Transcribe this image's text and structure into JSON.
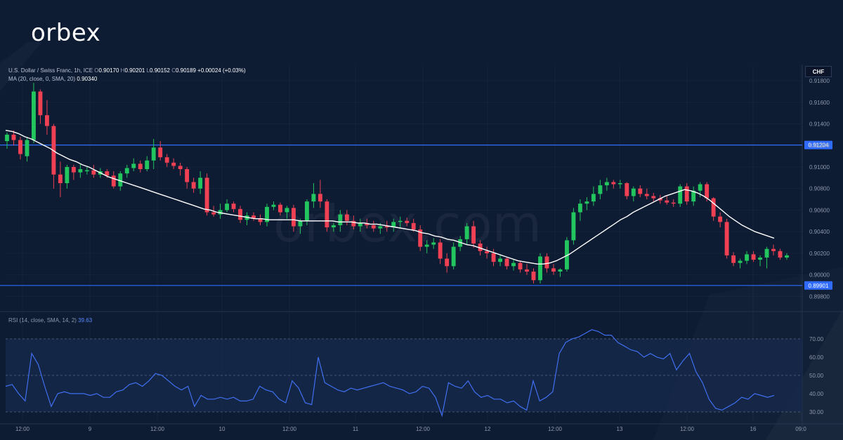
{
  "brand": {
    "logo_text": "orbex",
    "watermark": "orbex.com"
  },
  "header": {
    "symbol_title": "U.S. Dollar / Swiss Franc, 1h, ICE",
    "open_key": "O",
    "open": "0.90170",
    "high_key": "H",
    "high": "0.90201",
    "low_key": "L",
    "low": "0.90152",
    "close_key": "C",
    "close": "0.90189",
    "change": "+0.00024 (+0.03%)",
    "ma_label": "MA (20, close, 0, SMA, 20)",
    "ma_value": "0.90340"
  },
  "currency_button": "CHF",
  "colors": {
    "background": "#0d1b33",
    "up": "#22c55e",
    "down": "#ef4153",
    "ma_line": "#ffffff",
    "level_line": "#2f6bff",
    "rsi_line": "#3f6ff0",
    "rsi_band": "#16284a"
  },
  "rsi_panel": {
    "label": "RSI (14, close, SMA, 14, 2)",
    "value": "39.63",
    "levels": [
      "70.00",
      "60.00",
      "50.00",
      "40.00",
      "30.00"
    ]
  },
  "chart_data": {
    "type": "candlestick",
    "symbol": "U.S. Dollar / Swiss Franc",
    "interval": "1h",
    "y_unit": "CHF",
    "ylim": [
      0.8975,
      0.9195
    ],
    "y_ticks": [
      "0.91800",
      "0.91600",
      "0.91400",
      "0.91200",
      "0.91000",
      "0.90800",
      "0.90600",
      "0.90400",
      "0.90200",
      "0.90000",
      "0.89800"
    ],
    "x_tick_labels": [
      "12:00",
      "9",
      "12:00",
      "10",
      "12:00",
      "11",
      "12:00",
      "12",
      "12:00",
      "13",
      "12:00",
      "16",
      "09:0"
    ],
    "horizontal_levels": [
      {
        "label": "0.91204",
        "value": 0.91204
      },
      {
        "label": "0.89901",
        "value": 0.89901
      }
    ],
    "candles": [
      [
        0.9124,
        0.9132,
        0.9117,
        0.913
      ],
      [
        0.913,
        0.9134,
        0.912,
        0.9125
      ],
      [
        0.9125,
        0.9128,
        0.9107,
        0.9112
      ],
      [
        0.911,
        0.9128,
        0.9105,
        0.9125
      ],
      [
        0.9125,
        0.9178,
        0.9122,
        0.917
      ],
      [
        0.917,
        0.9172,
        0.914,
        0.9148
      ],
      [
        0.9148,
        0.9162,
        0.913,
        0.9138
      ],
      [
        0.9138,
        0.914,
        0.908,
        0.9093
      ],
      [
        0.9093,
        0.9105,
        0.9072,
        0.9085
      ],
      [
        0.9085,
        0.9102,
        0.908,
        0.91
      ],
      [
        0.91,
        0.9102,
        0.9088,
        0.9095
      ],
      [
        0.9095,
        0.9103,
        0.909,
        0.9098
      ],
      [
        0.9096,
        0.91,
        0.9093,
        0.9097
      ],
      [
        0.9097,
        0.9102,
        0.909,
        0.9093
      ],
      [
        0.9093,
        0.9099,
        0.909,
        0.9096
      ],
      [
        0.9096,
        0.9098,
        0.909,
        0.9092
      ],
      [
        0.9092,
        0.9096,
        0.908,
        0.9082
      ],
      [
        0.9082,
        0.9096,
        0.9078,
        0.9094
      ],
      [
        0.9094,
        0.9102,
        0.909,
        0.9099
      ],
      [
        0.9099,
        0.9108,
        0.9096,
        0.9103
      ],
      [
        0.9103,
        0.9106,
        0.9095,
        0.9098
      ],
      [
        0.9098,
        0.911,
        0.9096,
        0.9106
      ],
      [
        0.9106,
        0.9126,
        0.9098,
        0.9118
      ],
      [
        0.9118,
        0.9124,
        0.9106,
        0.9109
      ],
      [
        0.9109,
        0.9112,
        0.91,
        0.9104
      ],
      [
        0.9104,
        0.9108,
        0.9098,
        0.9101
      ],
      [
        0.9101,
        0.9104,
        0.9092,
        0.9098
      ],
      [
        0.9098,
        0.91,
        0.908,
        0.9086
      ],
      [
        0.9086,
        0.909,
        0.9076,
        0.908
      ],
      [
        0.908,
        0.9096,
        0.9075,
        0.909
      ],
      [
        0.909,
        0.9094,
        0.9055,
        0.9058
      ],
      [
        0.9058,
        0.9064,
        0.9054,
        0.9056
      ],
      [
        0.9056,
        0.9066,
        0.9052,
        0.906
      ],
      [
        0.906,
        0.907,
        0.9058,
        0.9066
      ],
      [
        0.9066,
        0.9068,
        0.9058,
        0.9061
      ],
      [
        0.9061,
        0.9064,
        0.9048,
        0.9051
      ],
      [
        0.9051,
        0.9058,
        0.9046,
        0.9055
      ],
      [
        0.9055,
        0.9058,
        0.905,
        0.9052
      ],
      [
        0.9052,
        0.9056,
        0.9046,
        0.9049
      ],
      [
        0.9049,
        0.9066,
        0.9045,
        0.9063
      ],
      [
        0.9063,
        0.9068,
        0.906,
        0.9065
      ],
      [
        0.9065,
        0.9067,
        0.9055,
        0.9058
      ],
      [
        0.9058,
        0.9064,
        0.9052,
        0.9062
      ],
      [
        0.9062,
        0.9065,
        0.904,
        0.9045
      ],
      [
        0.9045,
        0.9052,
        0.9038,
        0.905
      ],
      [
        0.905,
        0.907,
        0.9046,
        0.9068
      ],
      [
        0.9068,
        0.9085,
        0.9062,
        0.9075
      ],
      [
        0.9075,
        0.9088,
        0.9062,
        0.9068
      ],
      [
        0.9068,
        0.907,
        0.904,
        0.9044
      ],
      [
        0.9044,
        0.9048,
        0.904,
        0.9046
      ],
      [
        0.9046,
        0.906,
        0.904,
        0.9056
      ],
      [
        0.9056,
        0.906,
        0.9046,
        0.905
      ],
      [
        0.905,
        0.9055,
        0.9042,
        0.9045
      ],
      [
        0.9045,
        0.9052,
        0.904,
        0.9048
      ],
      [
        0.9048,
        0.9052,
        0.9043,
        0.9046
      ],
      [
        0.9046,
        0.905,
        0.904,
        0.9043
      ],
      [
        0.9043,
        0.9048,
        0.9038,
        0.9045
      ],
      [
        0.9045,
        0.905,
        0.904,
        0.9044
      ],
      [
        0.9044,
        0.9052,
        0.904,
        0.9049
      ],
      [
        0.9049,
        0.9054,
        0.9044,
        0.905
      ],
      [
        0.905,
        0.9053,
        0.9045,
        0.9048
      ],
      [
        0.9048,
        0.9052,
        0.904,
        0.9042
      ],
      [
        0.9042,
        0.9046,
        0.9022,
        0.9026
      ],
      [
        0.9026,
        0.9032,
        0.902,
        0.9028
      ],
      [
        0.9028,
        0.9034,
        0.9024,
        0.903
      ],
      [
        0.903,
        0.9033,
        0.901,
        0.9015
      ],
      [
        0.9015,
        0.902,
        0.9002,
        0.9008
      ],
      [
        0.9008,
        0.903,
        0.9005,
        0.9026
      ],
      [
        0.9026,
        0.9036,
        0.9022,
        0.9033
      ],
      [
        0.9033,
        0.9048,
        0.9028,
        0.9045
      ],
      [
        0.9045,
        0.905,
        0.9025,
        0.9029
      ],
      [
        0.9029,
        0.9032,
        0.9018,
        0.9022
      ],
      [
        0.9022,
        0.9026,
        0.9015,
        0.902
      ],
      [
        0.902,
        0.9024,
        0.9008,
        0.9012
      ],
      [
        0.9012,
        0.9018,
        0.9008,
        0.9015
      ],
      [
        0.9015,
        0.9016,
        0.9005,
        0.9008
      ],
      [
        0.9008,
        0.9014,
        0.9004,
        0.9011
      ],
      [
        0.9011,
        0.9013,
        0.9002,
        0.9005
      ],
      [
        0.9005,
        0.901,
        0.9,
        0.9003
      ],
      [
        0.9003,
        0.9006,
        0.8992,
        0.8995
      ],
      [
        0.8995,
        0.902,
        0.8992,
        0.9017
      ],
      [
        0.9017,
        0.902,
        0.9002,
        0.9006
      ],
      [
        0.9006,
        0.901,
        0.9,
        0.9003
      ],
      [
        0.9003,
        0.9006,
        0.8998,
        0.9005
      ],
      [
        0.9005,
        0.9035,
        0.9003,
        0.9032
      ],
      [
        0.9032,
        0.9062,
        0.9028,
        0.9058
      ],
      [
        0.9058,
        0.907,
        0.905,
        0.9066
      ],
      [
        0.9066,
        0.9072,
        0.906,
        0.9068
      ],
      [
        0.9068,
        0.9082,
        0.9064,
        0.9075
      ],
      [
        0.9075,
        0.9088,
        0.907,
        0.9083
      ],
      [
        0.9083,
        0.909,
        0.9078,
        0.9086
      ],
      [
        0.9086,
        0.9088,
        0.908,
        0.9084
      ],
      [
        0.9084,
        0.9088,
        0.908,
        0.9085
      ],
      [
        0.9085,
        0.9086,
        0.907,
        0.9073
      ],
      [
        0.9073,
        0.9082,
        0.9068,
        0.908
      ],
      [
        0.908,
        0.9083,
        0.9072,
        0.9075
      ],
      [
        0.9075,
        0.908,
        0.907,
        0.9073
      ],
      [
        0.9073,
        0.9076,
        0.9068,
        0.9071
      ],
      [
        0.9071,
        0.9074,
        0.9066,
        0.9069
      ],
      [
        0.9069,
        0.9073,
        0.9065,
        0.9067
      ],
      [
        0.9067,
        0.907,
        0.9063,
        0.9066
      ],
      [
        0.9066,
        0.9084,
        0.9063,
        0.9082
      ],
      [
        0.9082,
        0.9085,
        0.9065,
        0.9068
      ],
      [
        0.9068,
        0.9082,
        0.9064,
        0.9078
      ],
      [
        0.9078,
        0.9086,
        0.9072,
        0.9084
      ],
      [
        0.9084,
        0.9086,
        0.9068,
        0.9071
      ],
      [
        0.9071,
        0.9072,
        0.905,
        0.9054
      ],
      [
        0.9054,
        0.9058,
        0.9044,
        0.9049
      ],
      [
        0.9049,
        0.9052,
        0.9015,
        0.9018
      ],
      [
        0.9018,
        0.9021,
        0.9008,
        0.9011
      ],
      [
        0.9011,
        0.9015,
        0.9006,
        0.9013
      ],
      [
        0.9013,
        0.9022,
        0.901,
        0.9019
      ],
      [
        0.9019,
        0.9022,
        0.9012,
        0.9014
      ],
      [
        0.9014,
        0.9018,
        0.9008,
        0.9016
      ],
      [
        0.9016,
        0.9026,
        0.9006,
        0.9024
      ],
      [
        0.9024,
        0.9028,
        0.9018,
        0.9022
      ],
      [
        0.9022,
        0.9024,
        0.9014,
        0.9016
      ],
      [
        0.9016,
        0.902,
        0.9014,
        0.9018
      ]
    ],
    "ma_series": [
      0.9134,
      0.9133,
      0.9131,
      0.9128,
      0.9126,
      0.9123,
      0.912,
      0.9117,
      0.9113,
      0.911,
      0.9107,
      0.9105,
      0.9102,
      0.91,
      0.9097,
      0.9094,
      0.9091,
      0.9089,
      0.9087,
      0.9085,
      0.9083,
      0.9081,
      0.9079,
      0.9077,
      0.9075,
      0.9073,
      0.9071,
      0.9069,
      0.9067,
      0.9065,
      0.9063,
      0.9061,
      0.906,
      0.9058,
      0.9057,
      0.9056,
      0.9055,
      0.9054,
      0.9053,
      0.9052,
      0.9052,
      0.9051,
      0.9051,
      0.9051,
      0.9051,
      0.9051,
      0.905,
      0.905,
      0.905,
      0.905,
      0.905,
      0.905,
      0.9049,
      0.9049,
      0.9049,
      0.9048,
      0.9048,
      0.9047,
      0.9047,
      0.9046,
      0.9045,
      0.9044,
      0.9043,
      0.9042,
      0.9041,
      0.9039,
      0.9038,
      0.9036,
      0.9035,
      0.9033,
      0.9032,
      0.903,
      0.9028,
      0.9027,
      0.9025,
      0.9023,
      0.9021,
      0.9019,
      0.9017,
      0.9015,
      0.9013,
      0.9012,
      0.9011,
      0.901,
      0.901,
      0.9011,
      0.9013,
      0.9016,
      0.9019,
      0.9023,
      0.9027,
      0.9031,
      0.9035,
      0.9039,
      0.9043,
      0.9047,
      0.9051,
      0.9054,
      0.9058,
      0.9061,
      0.9064,
      0.9067,
      0.907,
      0.9073,
      0.9075,
      0.9077,
      0.9079,
      0.9078,
      0.9076,
      0.9073,
      0.9069,
      0.9064,
      0.9059,
      0.9054,
      0.905,
      0.9046,
      0.9043,
      0.904,
      0.9038,
      0.9036,
      0.9034
    ],
    "rsi": {
      "ylim": [
        25,
        78
      ],
      "overbought": 70,
      "oversold": 30,
      "values": [
        44,
        45,
        40,
        36,
        62,
        56,
        44,
        33,
        40,
        41,
        40,
        40,
        40,
        39,
        40,
        38,
        38,
        41,
        42,
        45,
        46,
        44,
        47,
        51,
        50,
        47,
        44,
        42,
        44,
        33,
        39,
        37,
        37,
        38,
        37,
        38,
        36,
        36,
        37,
        44,
        42,
        41,
        37,
        35,
        47,
        43,
        35,
        34,
        60,
        46,
        44,
        42,
        41,
        43,
        42,
        43,
        44,
        45,
        46,
        44,
        43,
        42,
        40,
        41,
        44,
        43,
        38,
        28,
        46,
        44,
        43,
        47,
        41,
        38,
        39,
        37,
        37,
        35,
        36,
        33,
        31,
        47,
        36,
        38,
        41,
        62,
        68,
        70,
        71,
        73,
        75,
        74,
        72,
        72,
        68,
        66,
        64,
        63,
        60,
        62,
        60,
        59,
        62,
        53,
        58,
        62,
        52,
        46,
        37,
        32,
        31,
        33,
        35,
        38,
        37,
        40,
        39,
        38,
        39
      ]
    }
  }
}
